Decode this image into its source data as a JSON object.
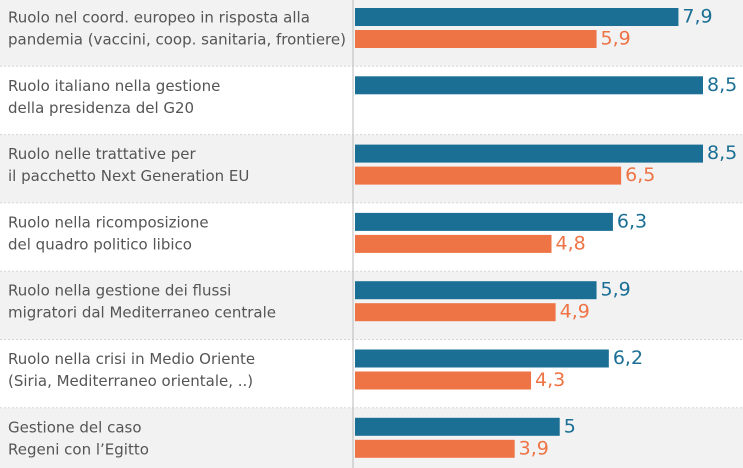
{
  "chart_data": {
    "type": "bar",
    "orientation": "horizontal",
    "categories": [
      [
        "Ruolo nel coord. europeo in risposta alla",
        "pandemia (vaccini, coop. sanitaria, frontiere)"
      ],
      [
        "Ruolo italiano nella gestione",
        "della presidenza del G20"
      ],
      [
        "Ruolo nelle trattative per",
        "il pacchetto Next Generation EU"
      ],
      [
        "Ruolo nella ricomposizione",
        "del quadro politico libico"
      ],
      [
        "Ruolo nella gestione dei flussi",
        "migratori dal Mediterraneo centrale"
      ],
      [
        "Ruolo nella crisi in Medio Oriente",
        "(Siria, Mediterraneo orientale, ..)"
      ],
      [
        "Gestione del caso",
        "Regeni con l’Egitto"
      ]
    ],
    "series": [
      {
        "color": "#1b6f95",
        "values": [
          7.9,
          8.5,
          8.5,
          6.3,
          5.9,
          6.2,
          5
        ],
        "value_labels": [
          "7,9",
          "8,5",
          "8,5",
          "6,3",
          "5,9",
          "6,2",
          "5"
        ]
      },
      {
        "color": "#ee7446",
        "values": [
          5.9,
          null,
          6.5,
          4.8,
          4.9,
          4.3,
          3.9
        ],
        "value_labels": [
          "5,9",
          null,
          "6,5",
          "4,8",
          "4,9",
          "4,3",
          "3,9"
        ]
      }
    ],
    "xlim": [
      0,
      8.5
    ]
  }
}
